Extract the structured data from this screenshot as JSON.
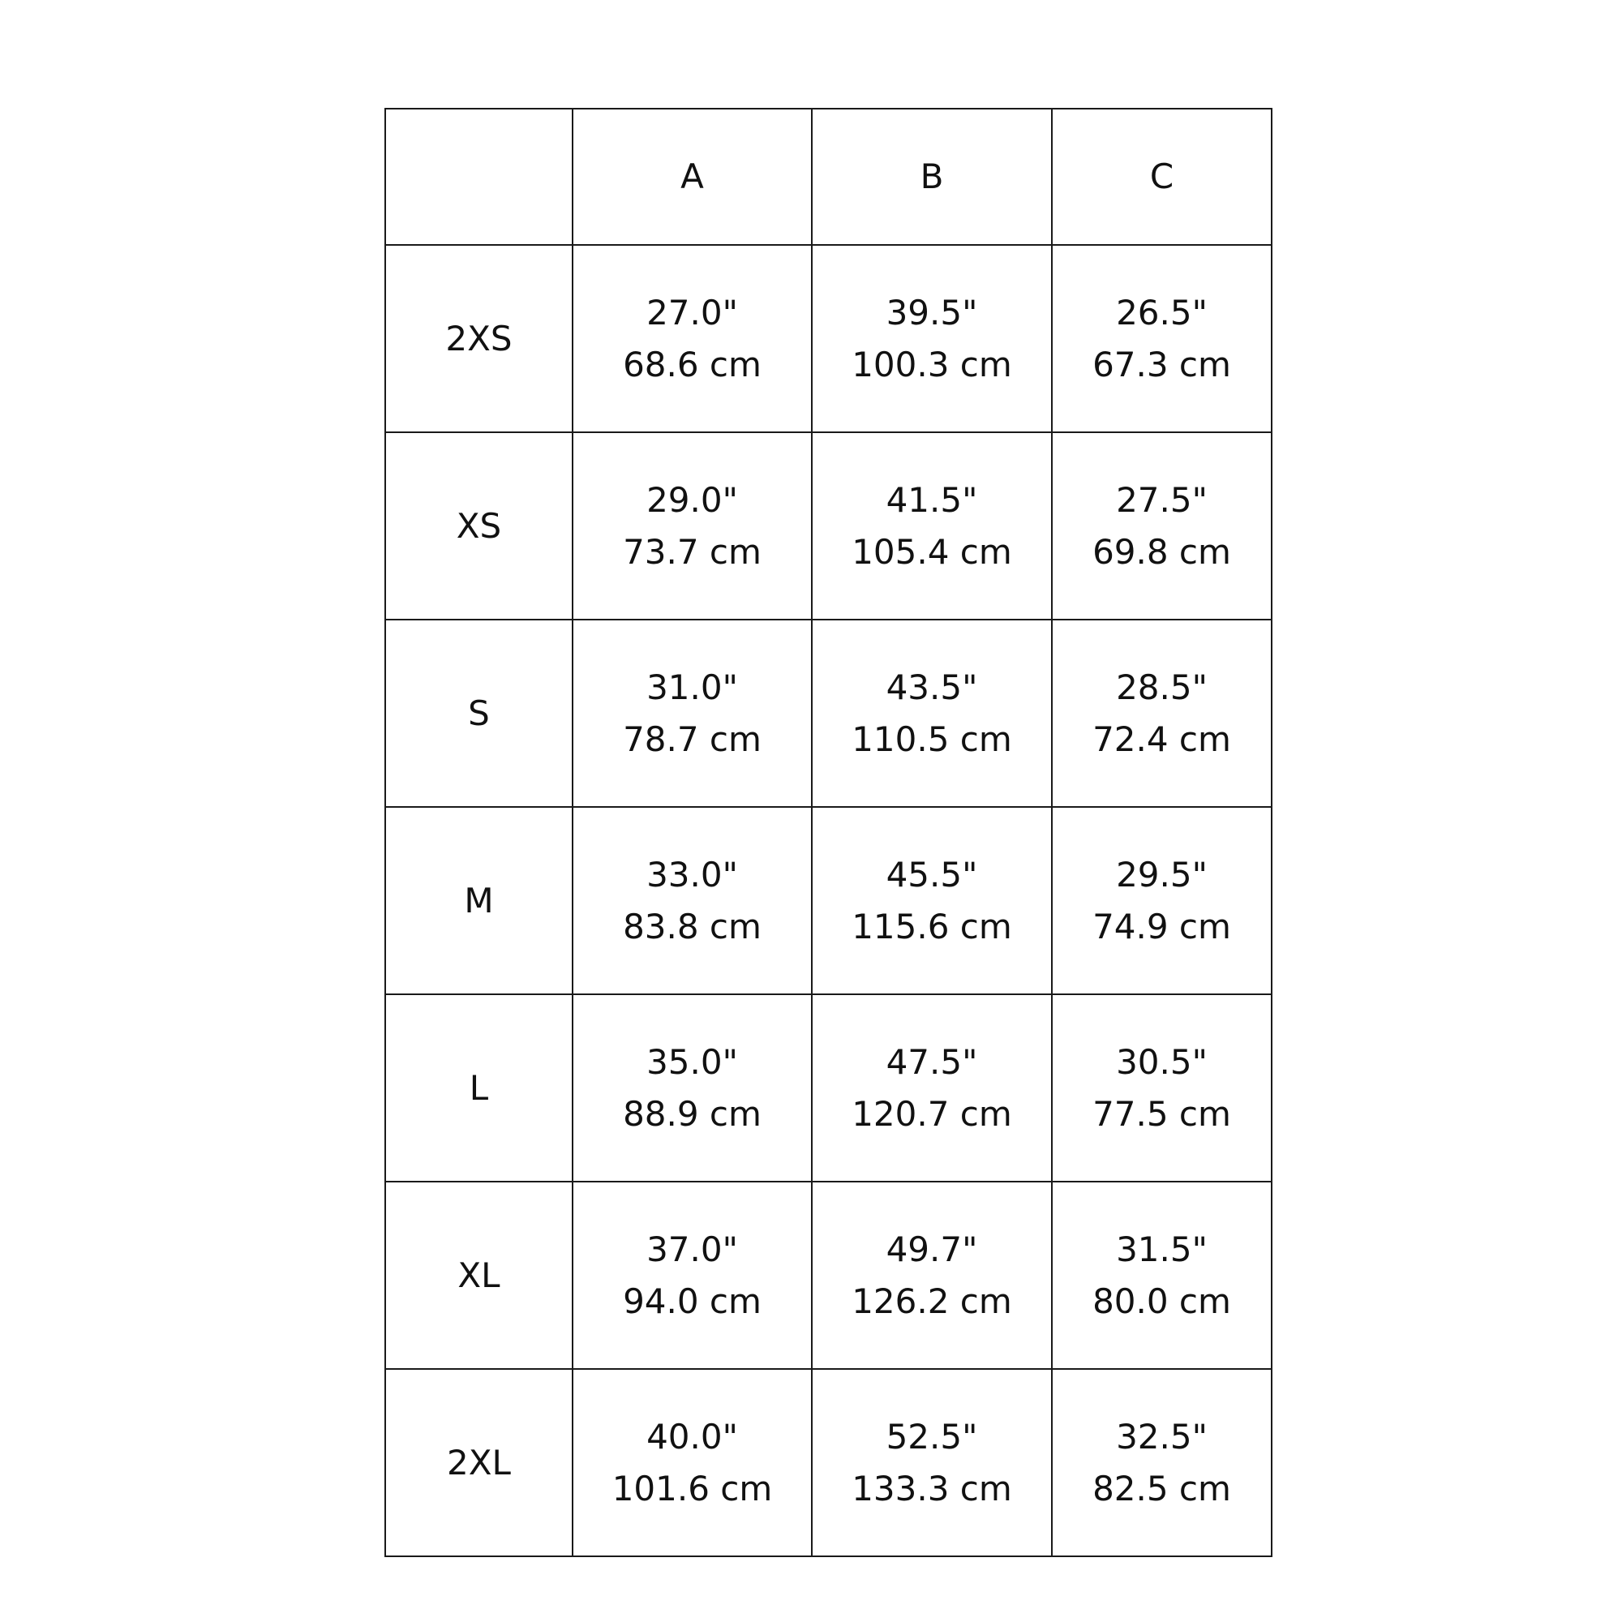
{
  "table": {
    "columns": [
      "",
      "A",
      "B",
      "C"
    ],
    "rows": [
      {
        "size": "2XS",
        "cells": [
          {
            "in": "27.0\"",
            "cm": "68.6 cm"
          },
          {
            "in": "39.5\"",
            "cm": "100.3 cm"
          },
          {
            "in": "26.5\"",
            "cm": "67.3 cm"
          }
        ]
      },
      {
        "size": "XS",
        "cells": [
          {
            "in": "29.0\"",
            "cm": "73.7 cm"
          },
          {
            "in": "41.5\"",
            "cm": "105.4 cm"
          },
          {
            "in": "27.5\"",
            "cm": "69.8 cm"
          }
        ]
      },
      {
        "size": "S",
        "cells": [
          {
            "in": "31.0\"",
            "cm": "78.7 cm"
          },
          {
            "in": "43.5\"",
            "cm": "110.5 cm"
          },
          {
            "in": "28.5\"",
            "cm": "72.4 cm"
          }
        ]
      },
      {
        "size": "M",
        "cells": [
          {
            "in": "33.0\"",
            "cm": "83.8 cm"
          },
          {
            "in": "45.5\"",
            "cm": "115.6 cm"
          },
          {
            "in": "29.5\"",
            "cm": "74.9 cm"
          }
        ]
      },
      {
        "size": "L",
        "cells": [
          {
            "in": "35.0\"",
            "cm": "88.9 cm"
          },
          {
            "in": "47.5\"",
            "cm": "120.7 cm"
          },
          {
            "in": "30.5\"",
            "cm": "77.5 cm"
          }
        ]
      },
      {
        "size": "XL",
        "cells": [
          {
            "in": "37.0\"",
            "cm": "94.0 cm"
          },
          {
            "in": "49.7\"",
            "cm": "126.2 cm"
          },
          {
            "in": "31.5\"",
            "cm": "80.0 cm"
          }
        ]
      },
      {
        "size": "2XL",
        "cells": [
          {
            "in": "40.0\"",
            "cm": "101.6 cm"
          },
          {
            "in": "52.5\"",
            "cm": "133.3 cm"
          },
          {
            "in": "32.5\"",
            "cm": "82.5 cm"
          }
        ]
      }
    ]
  }
}
